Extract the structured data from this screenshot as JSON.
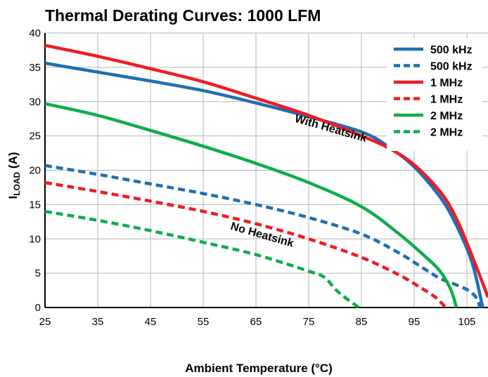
{
  "chart_data": {
    "type": "line",
    "title": "Thermal Derating Curves: 1000 LFM",
    "xlabel": "Ambient Temperature (°C)",
    "ylabel_main": "I",
    "ylabel_sub": "LOAD",
    "ylabel_unit": " (A)",
    "xlim": [
      25,
      109
    ],
    "ylim": [
      0,
      40
    ],
    "xticks": [
      25,
      35,
      45,
      55,
      65,
      75,
      85,
      95,
      105
    ],
    "yticks": [
      0,
      5,
      10,
      15,
      20,
      25,
      30,
      35,
      40
    ],
    "grid": true,
    "legend_position": "top-right",
    "annotations": [
      {
        "text": "With Heatsink",
        "x": 79,
        "y": 25.6,
        "angle": 16
      },
      {
        "text": "No Heatsink",
        "x": 66,
        "y": 10.1,
        "angle": 16
      }
    ],
    "series": [
      {
        "name": "500 kHz",
        "color": "#1f6fb4",
        "style": "solid",
        "points": [
          [
            25,
            35.6
          ],
          [
            35,
            34.3
          ],
          [
            45,
            33
          ],
          [
            55,
            31.6
          ],
          [
            65,
            29.8
          ],
          [
            75,
            27.8
          ],
          [
            85,
            25.6
          ],
          [
            90,
            23.5
          ],
          [
            95,
            20.5
          ],
          [
            100,
            16
          ],
          [
            103,
            12
          ],
          [
            106,
            6.5
          ],
          [
            108,
            0
          ]
        ]
      },
      {
        "name": "500 kHz",
        "color": "#1f6fb4",
        "style": "dashed",
        "points": [
          [
            25,
            20.7
          ],
          [
            35,
            19.4
          ],
          [
            45,
            18
          ],
          [
            55,
            16.6
          ],
          [
            65,
            15
          ],
          [
            75,
            13.1
          ],
          [
            85,
            10.7
          ],
          [
            92,
            8
          ],
          [
            97,
            5.6
          ],
          [
            100,
            4.2
          ],
          [
            104,
            3
          ],
          [
            106,
            2.1
          ],
          [
            107,
            1.1
          ],
          [
            107.5,
            0
          ]
        ]
      },
      {
        "name": "1 MHz",
        "color": "#ee1c24",
        "style": "solid",
        "points": [
          [
            25,
            38.2
          ],
          [
            35,
            36.6
          ],
          [
            45,
            34.8
          ],
          [
            55,
            32.9
          ],
          [
            65,
            30.5
          ],
          [
            75,
            28
          ],
          [
            85,
            25
          ],
          [
            90,
            23.3
          ],
          [
            95,
            20.8
          ],
          [
            100,
            16.8
          ],
          [
            103,
            13
          ],
          [
            106,
            7.5
          ],
          [
            109,
            1.5
          ]
        ]
      },
      {
        "name": "1 MHz",
        "color": "#ee1c24",
        "style": "dashed",
        "points": [
          [
            25,
            18.2
          ],
          [
            35,
            16.9
          ],
          [
            45,
            15.5
          ],
          [
            55,
            14
          ],
          [
            65,
            12.2
          ],
          [
            75,
            10
          ],
          [
            85,
            7.3
          ],
          [
            92,
            4.8
          ],
          [
            96,
            3
          ],
          [
            99,
            1.5
          ],
          [
            101,
            0
          ]
        ]
      },
      {
        "name": "2 MHz",
        "color": "#0ead4b",
        "style": "solid",
        "points": [
          [
            25,
            29.7
          ],
          [
            35,
            28
          ],
          [
            45,
            25.8
          ],
          [
            55,
            23.5
          ],
          [
            65,
            21
          ],
          [
            75,
            18.2
          ],
          [
            85,
            14.7
          ],
          [
            92,
            10.8
          ],
          [
            97,
            7.5
          ],
          [
            100,
            5.2
          ],
          [
            102,
            2.5
          ],
          [
            103,
            0
          ]
        ]
      },
      {
        "name": "2 MHz",
        "color": "#0ead4b",
        "style": "dashed",
        "points": [
          [
            25,
            14
          ],
          [
            35,
            12.7
          ],
          [
            45,
            11.2
          ],
          [
            55,
            9.5
          ],
          [
            65,
            7.7
          ],
          [
            75,
            5.3
          ],
          [
            78,
            4.4
          ],
          [
            80,
            2.7
          ],
          [
            82,
            1.4
          ],
          [
            84.5,
            0
          ]
        ]
      }
    ]
  }
}
